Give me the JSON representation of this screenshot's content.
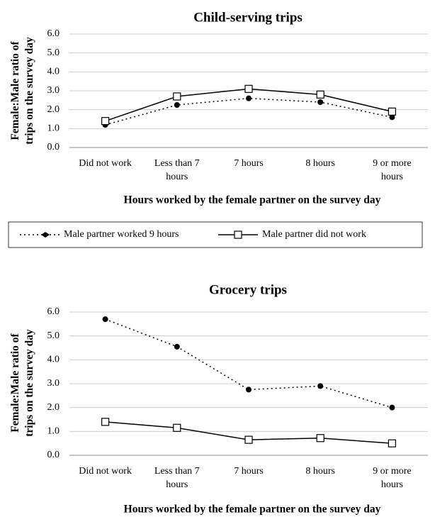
{
  "chart_data": [
    {
      "type": "line",
      "title": "Child-serving trips",
      "x_label": "Hours worked by the female partner on the survey day",
      "y_label": "Female:Male ratio of trips on the survey day",
      "categories": [
        "Did not work",
        "Less than 7 hours",
        "7 hours",
        "8 hours",
        "9 or more hours"
      ],
      "series": [
        {
          "name": "Male partner worked 9 hours",
          "color": "#000000",
          "dashed": true,
          "marker": "circle",
          "values": [
            1.2,
            2.25,
            2.6,
            2.4,
            1.6
          ]
        },
        {
          "name": "Male partner did not work",
          "color": "#000000",
          "dashed": false,
          "marker": "square",
          "values": [
            1.4,
            2.7,
            3.1,
            2.8,
            1.9
          ]
        }
      ],
      "ylim": [
        0,
        6
      ],
      "yticks": [
        {
          "value": 0,
          "label": "0.0"
        },
        {
          "value": 1,
          "label": "1.0"
        },
        {
          "value": 2,
          "label": "2.0"
        },
        {
          "value": 3,
          "label": "3.0"
        },
        {
          "value": 4,
          "label": "4.0"
        },
        {
          "value": 5,
          "label": "5.0"
        },
        {
          "value": 6,
          "label": "6.0"
        }
      ],
      "grid": true
    },
    {
      "type": "line",
      "title": "Grocery trips",
      "x_label": "Hours worked by the female partner on the survey day",
      "y_label": "Female:Male ratio of trips on the survey day",
      "categories": [
        "Did not work",
        "Less than 7 hours",
        "7 hours",
        "8 hours",
        "9 or more hours"
      ],
      "series": [
        {
          "color": "#000000",
          "dashed": true,
          "marker": "circle",
          "values": [
            5.7,
            4.55,
            2.75,
            2.9,
            2.0
          ]
        },
        {
          "color": "#000000",
          "dashed": false,
          "marker": "square",
          "values": [
            1.4,
            1.15,
            0.65,
            0.72,
            0.5
          ]
        }
      ],
      "ylim": [
        0,
        6
      ],
      "yticks": [
        {
          "value": 0,
          "label": "0.0"
        },
        {
          "value": 1,
          "label": "1.0"
        },
        {
          "value": 2,
          "label": "2.0"
        },
        {
          "value": 3,
          "label": "3.0"
        },
        {
          "value": 4,
          "label": "4.0"
        },
        {
          "value": 5,
          "label": "5.0"
        },
        {
          "value": 6,
          "label": "6.0"
        }
      ],
      "grid": true
    }
  ]
}
